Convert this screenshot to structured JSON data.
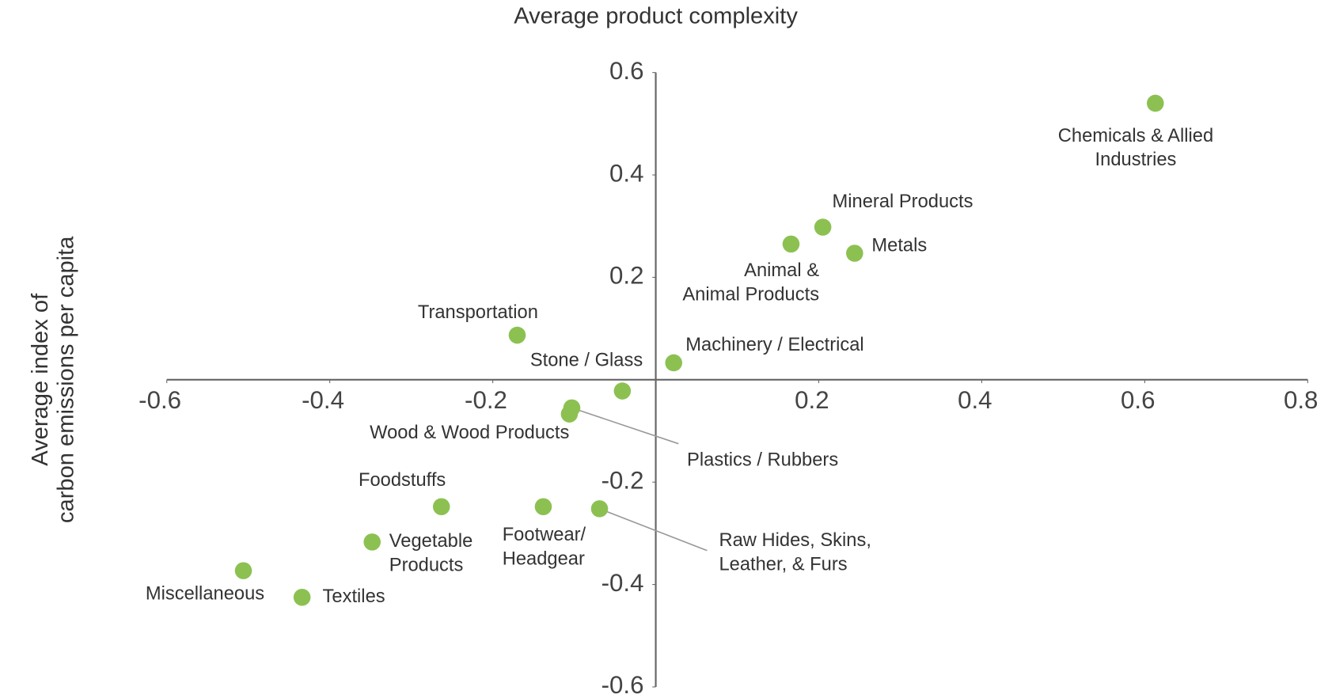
{
  "chart_data": {
    "type": "scatter",
    "title": "Average product complexity",
    "ylabel": [
      "Average index of",
      "carbon emissions per capita"
    ],
    "color": "#8cc152",
    "labels": [
      [
        "Chemicals & Allied",
        "Industries"
      ],
      [
        "Mineral Products"
      ],
      [
        "Animal &",
        "Animal Products"
      ],
      [
        "Metals"
      ],
      [
        "Machinery / Electrical"
      ],
      [
        "Transportation"
      ],
      [
        "Stone / Glass"
      ],
      [
        "Plastics / Rubbers"
      ],
      [
        "Wood & Wood Products"
      ],
      [
        "Foodstuffs"
      ],
      [
        "Footwear/",
        "Headgear"
      ],
      [
        "Raw Hides, Skins,",
        "Leather, & Furs"
      ],
      [
        "Vegetable",
        "Products"
      ],
      [
        "Miscellaneous"
      ],
      [
        "Textiles"
      ]
    ],
    "x": [
      0.613,
      0.205,
      0.166,
      0.244,
      0.022,
      -0.17,
      -0.041,
      -0.103,
      -0.106,
      -0.263,
      -0.138,
      -0.069,
      -0.348,
      -0.506,
      -0.434
    ],
    "values": [
      0.54,
      0.298,
      0.265,
      0.247,
      0.033,
      0.087,
      -0.022,
      -0.055,
      -0.067,
      -0.248,
      -0.248,
      -0.252,
      -0.317,
      -0.373,
      -0.425
    ],
    "xlim": [
      -0.6,
      0.8
    ],
    "ylim": [
      -0.6,
      0.6
    ],
    "xticks": [
      -0.6,
      -0.4,
      -0.2,
      0.2,
      0.4,
      0.6,
      0.8
    ],
    "yticks": [
      -0.6,
      -0.4,
      -0.2,
      0.2,
      0.4,
      0.6
    ]
  }
}
